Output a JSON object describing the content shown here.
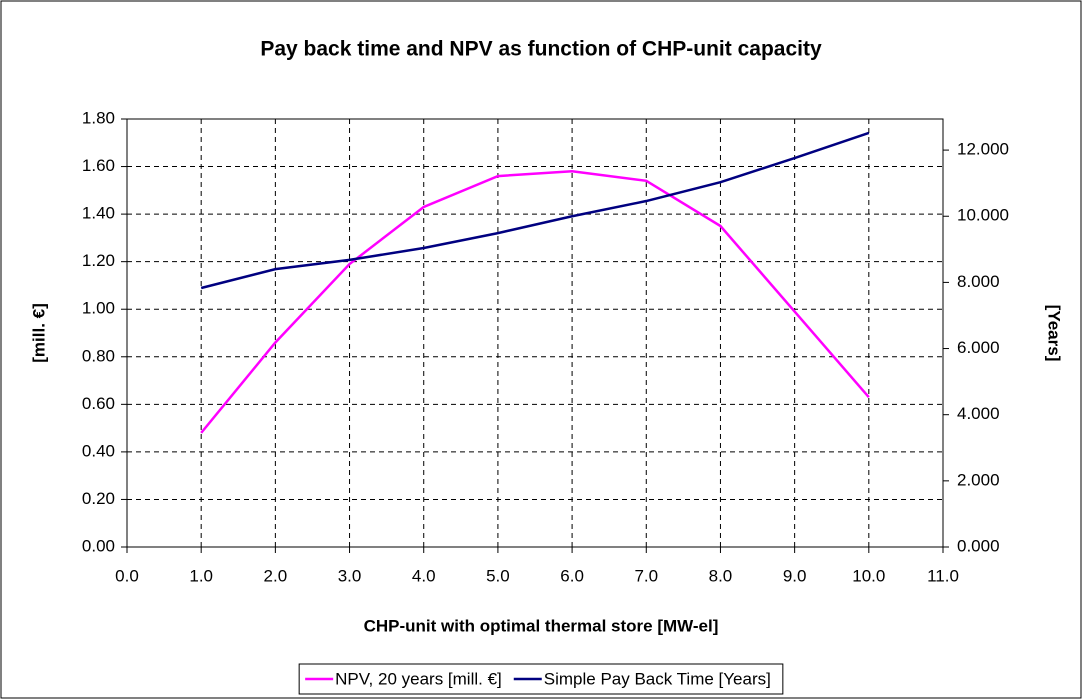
{
  "chart_data": {
    "type": "line",
    "title": "Pay back time and NPV as function of CHP-unit capacity",
    "xlabel": "CHP-unit with optimal thermal store [MW-el]",
    "ylabel": "[mill. €]",
    "y2label": "[Years]",
    "x": [
      1,
      2,
      3,
      4,
      5,
      6,
      7,
      8,
      9,
      10
    ],
    "series": [
      {
        "name": "NPV, 20 years [mill. €]",
        "color": "#ff00ff",
        "values": [
          0.48,
          0.86,
          1.19,
          1.43,
          1.56,
          1.58,
          1.54,
          1.35,
          0.99,
          0.63
        ]
      },
      {
        "name": "Simple Pay Back Time [Years]",
        "color": "#000080",
        "axis": "y2",
        "values": [
          7.83,
          8.4,
          8.68,
          9.04,
          9.49,
          10.0,
          10.46,
          11.03,
          11.76,
          12.52
        ]
      }
    ],
    "xlim": [
      0,
      11
    ],
    "xticks": [
      {
        "value": 0,
        "label": "0.0"
      },
      {
        "value": 1,
        "label": "1.0"
      },
      {
        "value": 2,
        "label": "2.0"
      },
      {
        "value": 3,
        "label": "3.0"
      },
      {
        "value": 4,
        "label": "4.0"
      },
      {
        "value": 5,
        "label": "5.0"
      },
      {
        "value": 6,
        "label": "6.0"
      },
      {
        "value": 7,
        "label": "7.0"
      },
      {
        "value": 8,
        "label": "8.0"
      },
      {
        "value": 9,
        "label": "9.0"
      },
      {
        "value": 10,
        "label": "10.0"
      },
      {
        "value": 11,
        "label": "11.0"
      }
    ],
    "ylim": [
      0,
      1.8
    ],
    "yticks": [
      {
        "value": 0,
        "label": "0.00"
      },
      {
        "value": 0.2,
        "label": "0.20"
      },
      {
        "value": 0.4,
        "label": "0.40"
      },
      {
        "value": 0.6,
        "label": "0.60"
      },
      {
        "value": 0.8,
        "label": "0.80"
      },
      {
        "value": 1,
        "label": "1.00"
      },
      {
        "value": 1.2,
        "label": "1.20"
      },
      {
        "value": 1.4,
        "label": "1.40"
      },
      {
        "value": 1.6,
        "label": "1.60"
      },
      {
        "value": 1.8,
        "label": "1.80"
      }
    ],
    "y2lim": [
      0,
      12.94
    ],
    "y2ticks": [
      {
        "value": 0,
        "label": "0.000"
      },
      {
        "value": 2,
        "label": "2.000"
      },
      {
        "value": 4,
        "label": "4.000"
      },
      {
        "value": 6,
        "label": "6.000"
      },
      {
        "value": 8,
        "label": "8.000"
      },
      {
        "value": 10,
        "label": "10.000"
      },
      {
        "value": 12,
        "label": "12.000"
      }
    ],
    "grid": true,
    "legend": "bottom"
  }
}
